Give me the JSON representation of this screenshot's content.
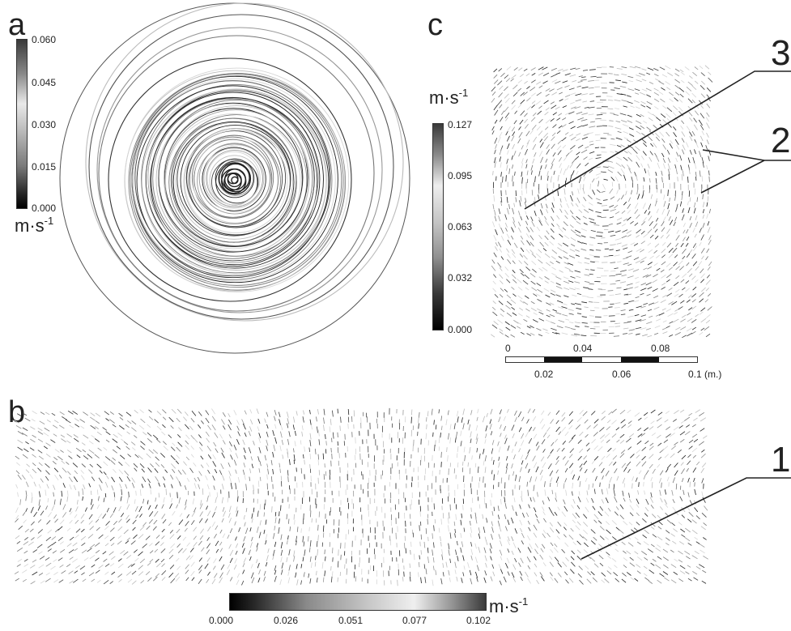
{
  "panels": {
    "a": {
      "letter": "a",
      "colorbar": {
        "ticks": [
          "0.060",
          "0.045",
          "0.030",
          "0.015",
          "0.000"
        ],
        "unit_base": "m·s",
        "unit_exp": "-1"
      }
    },
    "b": {
      "letter": "b",
      "colorbar": {
        "ticks": [
          "0.000",
          "0.026",
          "0.051",
          "0.077",
          "0.102"
        ],
        "unit_base": "m·s",
        "unit_exp": "-1"
      }
    },
    "c": {
      "letter": "c",
      "colorbar": {
        "ticks": [
          "0.127",
          "0.095",
          "0.063",
          "0.032",
          "0.000"
        ],
        "unit_base": "m·s",
        "unit_exp": "-1"
      },
      "scalebar": {
        "top_labels": [
          "0",
          "0.04",
          "0.08"
        ],
        "bottom_labels": [
          "0.02",
          "0.06",
          "0.1 (m.)"
        ]
      }
    }
  },
  "callouts": [
    "1",
    "2",
    "3"
  ],
  "colors": {
    "dark": "#1a1a1a",
    "mid": "#9a9a9a",
    "light": "#e6e6e6",
    "line": "#222222"
  }
}
